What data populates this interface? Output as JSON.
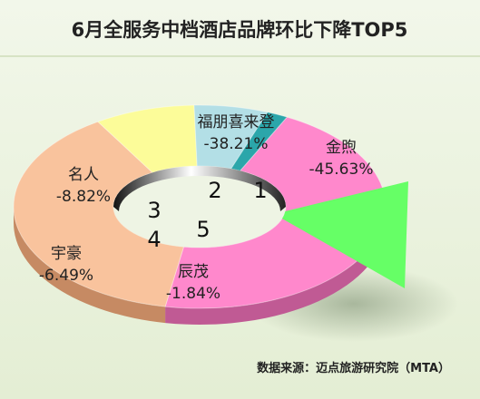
{
  "chart_data": {
    "type": "pie",
    "title": "6月全服务中档酒店品牌环比下降TOP5",
    "source": "数据来源：迈点旅游研究院（MTA）",
    "slices": [
      {
        "name": "金煦",
        "value": -45.63,
        "label": "-45.63%",
        "rank": "1",
        "color": "#ff88cc",
        "side": "#c05a94",
        "exploded": true
      },
      {
        "name": "福朋喜来登",
        "value": -38.21,
        "label": "-38.21%",
        "rank": "2",
        "color": "#f9c39d",
        "side": "#c68a63"
      },
      {
        "name": "名人",
        "value": -8.82,
        "label": "-8.82%",
        "rank": "3",
        "color": "#fcfc99",
        "side": "#c7c25c"
      },
      {
        "name": "宇豪",
        "value": -6.49,
        "label": "-6.49%",
        "rank": "4",
        "color": "#b3dfe6",
        "side": "#6e9fb3"
      },
      {
        "name": "辰茂",
        "value": -1.84,
        "label": "-1.84%",
        "rank": "5",
        "color": "#2ba6aa",
        "side": "#19707a"
      }
    ],
    "highlight_color": "#66ff66"
  }
}
